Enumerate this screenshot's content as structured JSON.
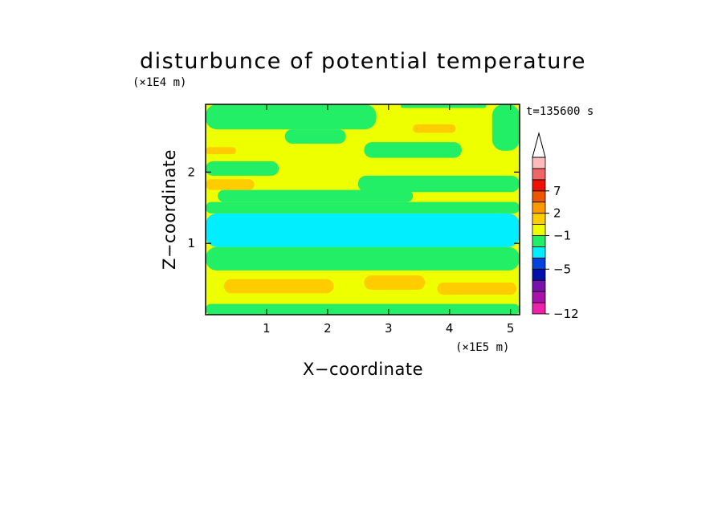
{
  "chart_data": {
    "type": "heatmap",
    "title": "disturbunce of potential temperature",
    "xlabel": "X−coordinate",
    "ylabel": "Z−coordinate",
    "x_unit": "(×1E5 m)",
    "y_unit": "(×1E4 m)",
    "time_label": "t=135600 s",
    "x_range": [
      0,
      5.15
    ],
    "y_range": [
      0,
      2.95
    ],
    "x_ticks": [
      {
        "value": 1,
        "label": "1"
      },
      {
        "value": 2,
        "label": "2"
      },
      {
        "value": 3,
        "label": "3"
      },
      {
        "value": 4,
        "label": "4"
      },
      {
        "value": 5,
        "label": "5"
      }
    ],
    "y_ticks": [
      {
        "value": 1,
        "label": "1"
      },
      {
        "value": 2,
        "label": "2"
      }
    ],
    "colorbar": {
      "labels": [
        "7",
        "2",
        "−1",
        "−5",
        "−12"
      ],
      "colors": [
        "#ee22aa",
        "#aa11aa",
        "#7711aa",
        "#0011aa",
        "#0044dd",
        "#00eeff",
        "#22ee66",
        "#eeff00",
        "#ffcc00",
        "#ff9900",
        "#ee5500",
        "#ee1100",
        "#ee6666",
        "#ffbbbb"
      ],
      "extend_top": true
    },
    "field": {
      "background": "#eeff00",
      "bands": [
        {
          "color": "#22ee66",
          "x": [
            0,
            5.15
          ],
          "y": [
            0,
            0.15
          ]
        },
        {
          "color": "#ffcc00",
          "x": [
            0.3,
            2.1
          ],
          "y": [
            0.3,
            0.5
          ]
        },
        {
          "color": "#ffcc00",
          "x": [
            2.6,
            3.6
          ],
          "y": [
            0.35,
            0.55
          ]
        },
        {
          "color": "#ffcc00",
          "x": [
            3.8,
            5.1
          ],
          "y": [
            0.28,
            0.45
          ]
        },
        {
          "color": "#22ee66",
          "x": [
            0,
            5.15
          ],
          "y": [
            0.62,
            0.95
          ]
        },
        {
          "color": "#00eeff",
          "x": [
            0,
            5.15
          ],
          "y": [
            0.95,
            1.42
          ]
        },
        {
          "color": "#22ee66",
          "x": [
            0,
            5.15
          ],
          "y": [
            1.42,
            1.58
          ]
        },
        {
          "color": "#22ee66",
          "x": [
            0.2,
            3.4
          ],
          "y": [
            1.58,
            1.75
          ]
        },
        {
          "color": "#22ee66",
          "x": [
            2.5,
            5.15
          ],
          "y": [
            1.72,
            1.95
          ]
        },
        {
          "color": "#ffcc00",
          "x": [
            0,
            0.8
          ],
          "y": [
            1.75,
            1.9
          ]
        },
        {
          "color": "#22ee66",
          "x": [
            0,
            1.2
          ],
          "y": [
            1.95,
            2.15
          ]
        },
        {
          "color": "#ffcc00",
          "x": [
            0,
            0.5
          ],
          "y": [
            2.25,
            2.35
          ]
        },
        {
          "color": "#22ee66",
          "x": [
            2.6,
            4.2
          ],
          "y": [
            2.2,
            2.42
          ]
        },
        {
          "color": "#22ee66",
          "x": [
            1.3,
            2.3
          ],
          "y": [
            2.4,
            2.6
          ]
        },
        {
          "color": "#22ee66",
          "x": [
            0,
            2.8
          ],
          "y": [
            2.6,
            2.95
          ]
        },
        {
          "color": "#22ee66",
          "x": [
            4.7,
            5.15
          ],
          "y": [
            2.3,
            2.95
          ]
        },
        {
          "color": "#ffcc00",
          "x": [
            3.4,
            4.1
          ],
          "y": [
            2.55,
            2.67
          ]
        },
        {
          "color": "#22ee66",
          "x": [
            3.2,
            4.6
          ],
          "y": [
            2.9,
            2.95
          ]
        }
      ]
    }
  }
}
